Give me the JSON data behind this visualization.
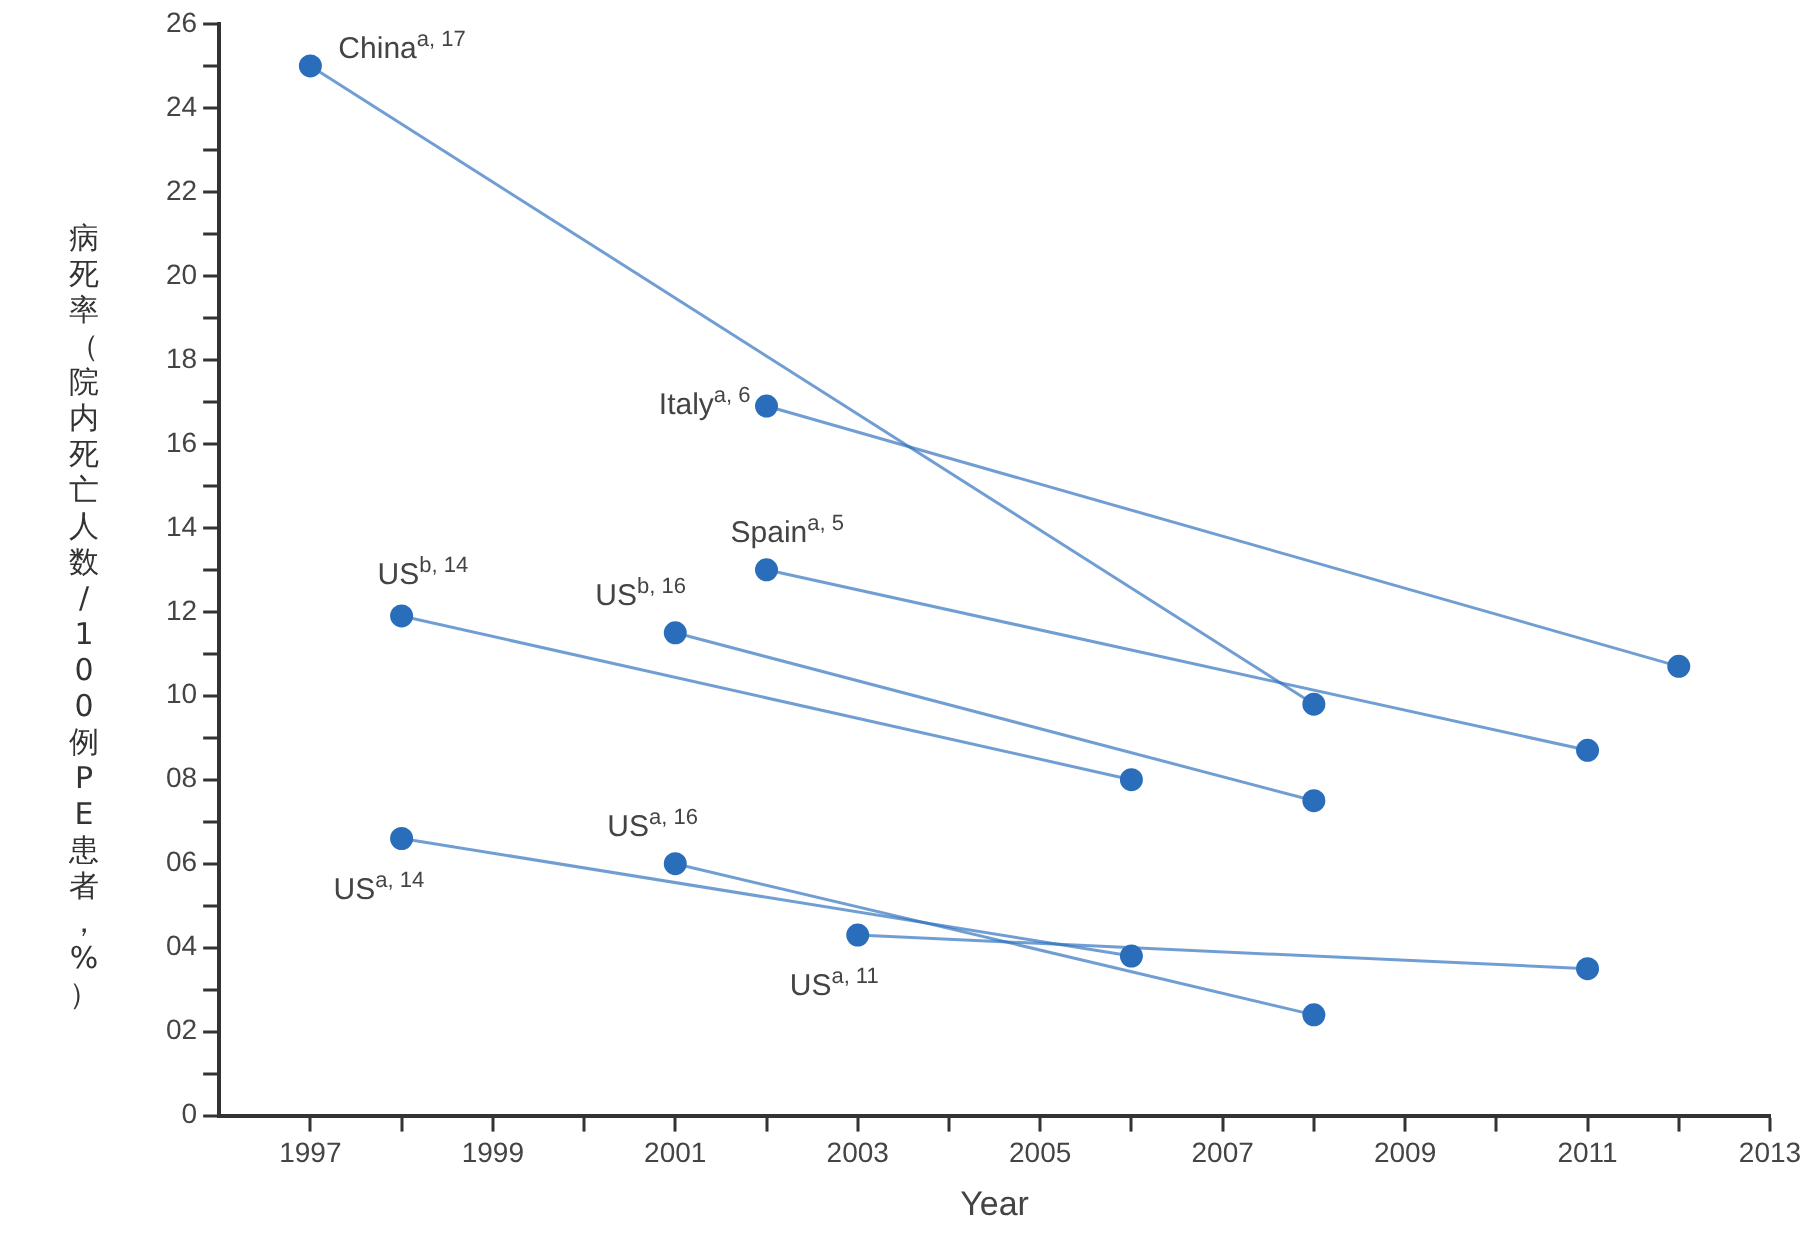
{
  "chart_data": {
    "type": "line",
    "xlabel": "Year",
    "ylabel": "病死率（院内死亡人数/100例PE患者，%）",
    "xlim": [
      1996,
      2013
    ],
    "xticks": [
      1997,
      {
        "value": 1998,
        "label": null
      },
      1999,
      {
        "value": 2000,
        "label": null
      },
      2001,
      {
        "value": 2002,
        "label": null
      },
      2003,
      {
        "value": 2004,
        "label": null
      },
      2005,
      {
        "value": 2006,
        "label": null
      },
      2007,
      {
        "value": 2008,
        "label": null
      },
      2009,
      {
        "value": 2010,
        "label": null
      },
      2011,
      {
        "value": 2012,
        "label": null
      },
      2013
    ],
    "ylim": [
      0,
      26
    ],
    "yticks": [
      0,
      {
        "value": 1,
        "label": null
      },
      {
        "value": 2,
        "label": "02"
      },
      {
        "value": 3,
        "label": null
      },
      {
        "value": 4,
        "label": "04"
      },
      {
        "value": 5,
        "label": null
      },
      {
        "value": 6,
        "label": "06"
      },
      {
        "value": 7,
        "label": null
      },
      {
        "value": 8,
        "label": "08"
      },
      {
        "value": 9,
        "label": null
      },
      10,
      {
        "value": 11,
        "label": null
      },
      12,
      {
        "value": 13,
        "label": null
      },
      14,
      {
        "value": 15,
        "label": null
      },
      16,
      {
        "value": 17,
        "label": null
      },
      18,
      {
        "value": 19,
        "label": null
      },
      20,
      {
        "value": 21,
        "label": null
      },
      22,
      {
        "value": 23,
        "label": null
      },
      24,
      {
        "value": 25,
        "label": null
      },
      26
    ],
    "grid": false,
    "legend": false,
    "marker": "circle",
    "line_style": "solid",
    "series": [
      {
        "name": "China$^{a, 17}$",
        "color": "#2a6ebb",
        "x": [
          1997,
          2008
        ],
        "values": [
          25.0,
          9.8
        ]
      },
      {
        "name": "Italy$^{a, 6}$",
        "color": "#2a6ebb",
        "x": [
          2002,
          2012
        ],
        "values": [
          16.9,
          10.7
        ]
      },
      {
        "name": "Spain$^{a, 5}$",
        "color": "#2a6ebb",
        "x": [
          2002,
          2011
        ],
        "values": [
          13.0,
          8.7
        ]
      },
      {
        "name": "US$^{b, 14}$",
        "color": "#2a6ebb",
        "x": [
          1998,
          2006
        ],
        "values": [
          11.9,
          8.0
        ]
      },
      {
        "name": "US$^{b, 16}$",
        "color": "#2a6ebb",
        "x": [
          2001,
          2008
        ],
        "values": [
          11.5,
          7.5
        ]
      },
      {
        "name": "US$^{a, 14}$",
        "color": "#2a6ebb",
        "x": [
          1998,
          2006
        ],
        "values": [
          6.6,
          3.8
        ]
      },
      {
        "name": "US$^{a, 16}$",
        "color": "#2a6ebb",
        "x": [
          2001,
          2008
        ],
        "values": [
          6.0,
          2.4
        ]
      },
      {
        "name": "US$^{a, 11}$",
        "color": "#2a6ebb",
        "x": [
          2003,
          2011
        ],
        "values": [
          4.3,
          3.5
        ]
      }
    ]
  }
}
